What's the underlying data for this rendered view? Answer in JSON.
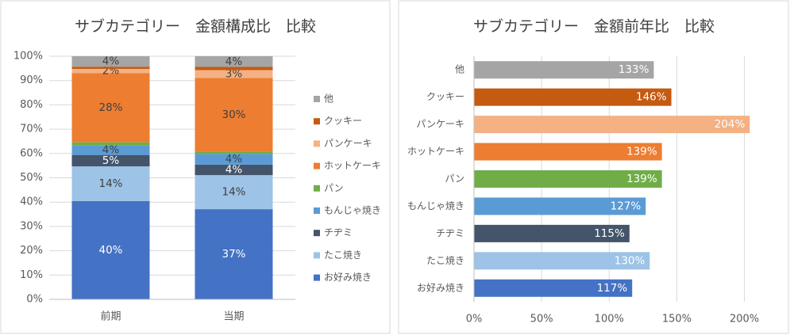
{
  "chart_data": [
    {
      "type": "bar",
      "stacked": true,
      "title": "サブカテゴリー　金額構成比　比較",
      "categories": [
        "前期",
        "当期"
      ],
      "series": [
        {
          "name": "お好み焼き",
          "color": "#4472c4",
          "values": [
            40.4,
            37.1
          ],
          "value_labels": [
            "40%",
            "37%"
          ]
        },
        {
          "name": "たこ焼き",
          "color": "#9dc3e6",
          "values": [
            14.3,
            14.0
          ],
          "value_labels": [
            "14%",
            "14%"
          ]
        },
        {
          "name": "チヂミ",
          "color": "#44546a",
          "values": [
            4.7,
            4.3
          ],
          "value_labels": [
            "5%",
            "4%"
          ]
        },
        {
          "name": "もんじゃ焼き",
          "color": "#5b9bd5",
          "values": [
            3.9,
            4.4
          ],
          "value_labels": [
            "4%",
            "4%"
          ]
        },
        {
          "name": "パン",
          "color": "#70ad47",
          "values": [
            1.3,
            1.0
          ],
          "value_labels": [
            null,
            null
          ]
        },
        {
          "name": "ホットケーキ",
          "color": "#ed7d31",
          "values": [
            28.4,
            30.3
          ],
          "value_labels": [
            "28%",
            "30%"
          ]
        },
        {
          "name": "パンケーキ",
          "color": "#f4b183",
          "values": [
            1.8,
            3.2
          ],
          "value_labels": [
            "2%",
            "3%"
          ]
        },
        {
          "name": "クッキー",
          "color": "#c55a11",
          "values": [
            0.9,
            1.3
          ],
          "value_labels": [
            null,
            null
          ]
        },
        {
          "name": "他",
          "color": "#a5a5a5",
          "values": [
            4.3,
            4.4
          ],
          "value_labels": [
            "4%",
            "4%"
          ]
        }
      ],
      "ylim": [
        0,
        100
      ],
      "yticks": [
        {
          "value": 0,
          "label": "0%"
        },
        {
          "value": 10,
          "label": "10%"
        },
        {
          "value": 20,
          "label": "20%"
        },
        {
          "value": 30,
          "label": "30%"
        },
        {
          "value": 40,
          "label": "40%"
        },
        {
          "value": 50,
          "label": "50%"
        },
        {
          "value": 60,
          "label": "60%"
        },
        {
          "value": 70,
          "label": "70%"
        },
        {
          "value": 80,
          "label": "80%"
        },
        {
          "value": 90,
          "label": "90%"
        },
        {
          "value": 100,
          "label": "100%"
        }
      ],
      "grid": true,
      "legend": "right"
    },
    {
      "type": "barh",
      "title": "サブカテゴリー　金額前年比　比較",
      "categories": [
        "他",
        "クッキー",
        "パンケーキ",
        "ホットケーキ",
        "パン",
        "もんじゃ焼き",
        "チヂミ",
        "たこ焼き",
        "お好み焼き"
      ],
      "values": [
        133,
        146,
        204,
        139,
        139,
        127,
        115,
        130,
        117
      ],
      "value_labels": [
        "133%",
        "146%",
        "204%",
        "139%",
        "139%",
        "127%",
        "115%",
        "130%",
        "117%"
      ],
      "colors": [
        "#a5a5a5",
        "#c55a11",
        "#f4b183",
        "#ed7d31",
        "#70ad47",
        "#5b9bd5",
        "#44546a",
        "#9dc3e6",
        "#4472c4"
      ],
      "xlim": [
        0,
        222
      ],
      "xticks": [
        {
          "value": 0,
          "label": "0%"
        },
        {
          "value": 50,
          "label": "50%"
        },
        {
          "value": 100,
          "label": "100%"
        },
        {
          "value": 150,
          "label": "150%"
        },
        {
          "value": 200,
          "label": "200%"
        }
      ],
      "grid": true
    }
  ]
}
